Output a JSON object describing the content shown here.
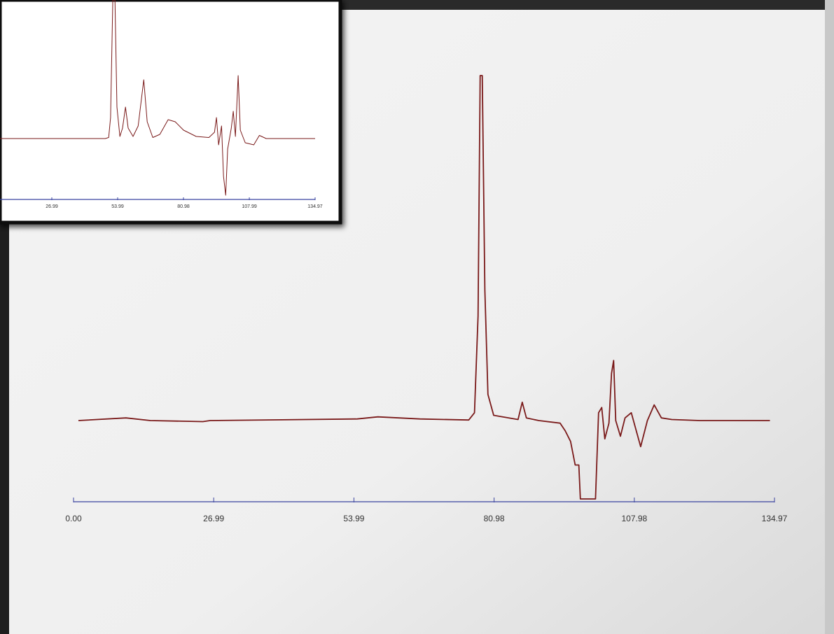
{
  "chart_data": [
    {
      "type": "line",
      "color": "#7a1a1a",
      "xlim": [
        0,
        134.97
      ],
      "ylim": [
        -15,
        66
      ],
      "xticks": [
        {
          "value": 0,
          "label": "0.00"
        },
        26.99,
        53.99,
        80.98,
        107.98,
        134.97
      ],
      "x": [
        0.94,
        10.1,
        14.8,
        24.9,
        26.3,
        54.6,
        58.6,
        66.7,
        76.1,
        77.2,
        77.9,
        78.3,
        78.7,
        79.2,
        79.8,
        80.9,
        85.6,
        86.4,
        87.2,
        89.6,
        93.7,
        94.7,
        95.7,
        96.6,
        97.3,
        97.6,
        100.5,
        101.1,
        101.7,
        102.3,
        103.1,
        103.6,
        104.0,
        104.4,
        105.3,
        106.2,
        107.4,
        109.2,
        110.5,
        111.8,
        113.2,
        115.2,
        120.6,
        134.1
      ],
      "values": [
        0,
        0.5,
        0,
        -0.2,
        0,
        0.3,
        0.7,
        0.3,
        0.1,
        1.5,
        20,
        66,
        66,
        25,
        5,
        1,
        0.2,
        3.5,
        0.5,
        0,
        -0.5,
        -2,
        -4,
        -8.5,
        -8.5,
        -15,
        -15,
        1.5,
        2.5,
        -3.5,
        -0.5,
        9,
        11.5,
        0,
        -3,
        0.5,
        1.5,
        -5,
        0,
        3,
        0.5,
        0.2,
        0,
        0
      ]
    },
    {
      "type": "line",
      "color": "#7a1a1a",
      "xlim": [
        0,
        134.97
      ],
      "ylim": [
        -29,
        66
      ],
      "xticks": [
        26.99,
        53.99,
        80.98,
        107.99,
        134.97
      ],
      "x": [
        5.7,
        48.9,
        50.3,
        51.1,
        52.0,
        52.9,
        53.7,
        54.9,
        56.0,
        57.2,
        58.3,
        60.3,
        62.4,
        64.7,
        66.1,
        68.4,
        71.3,
        74.7,
        77.6,
        81.0,
        86.2,
        91.4,
        93.7,
        94.5,
        95.4,
        96.6,
        97.4,
        98.3,
        99.1,
        100.6,
        101.4,
        102.3,
        103.4,
        104.3,
        106.3,
        109.8,
        112.1,
        114.9,
        134.97
      ],
      "values": [
        0,
        0,
        0.5,
        10,
        66,
        66,
        15,
        1,
        5,
        15,
        5,
        1,
        6,
        28,
        8,
        0.5,
        2,
        9,
        8,
        4,
        1,
        0.5,
        3,
        10,
        -3,
        6,
        -18,
        -27,
        -5,
        5,
        13,
        1,
        30,
        4,
        -2,
        -3,
        1.5,
        0,
        0
      ]
    }
  ]
}
